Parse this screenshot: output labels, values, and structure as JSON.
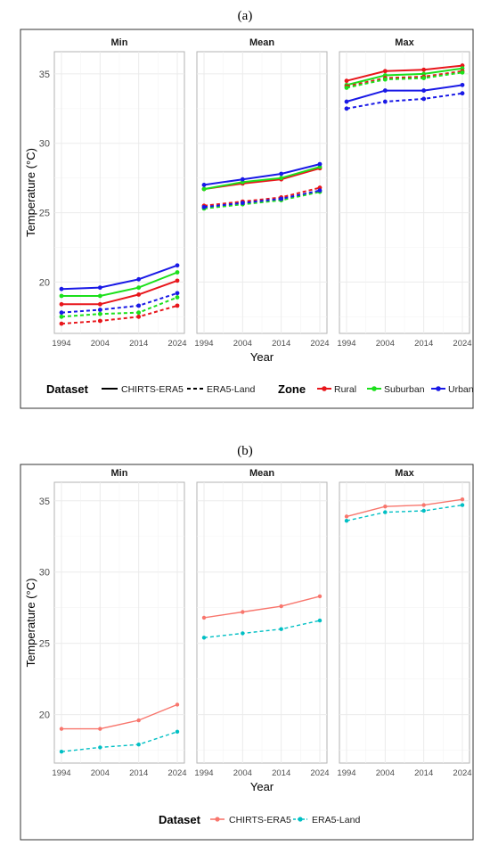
{
  "figure": {
    "panel_a_label": "(a)",
    "panel_b_label": "(b)"
  },
  "chart_data": [
    {
      "type": "line",
      "panel": "(a)",
      "facets": [
        "Min",
        "Mean",
        "Max"
      ],
      "x": [
        1994,
        2004,
        2014,
        2024
      ],
      "xlabel": "Year",
      "ylabel": "Temperature (°C)",
      "yticks": [
        20,
        25,
        30,
        35
      ],
      "ylim": [
        16.3,
        36.6
      ],
      "grid": true,
      "legend": {
        "position": "bottom",
        "dataset_title": "Dataset",
        "dataset_items": [
          "CHIRTS-ERA5",
          "ERA5-Land"
        ],
        "zone_title": "Zone",
        "zone_items": [
          "Rural",
          "Suburban",
          "Urban"
        ]
      },
      "colors": {
        "Rural": "#e8161b",
        "Suburban": "#1be01b",
        "Urban": "#1919e6"
      },
      "series": [
        {
          "zone": "Rural",
          "dataset": "CHIRTS-ERA5",
          "facet": "Min",
          "values": [
            18.4,
            18.4,
            19.1,
            20.1
          ]
        },
        {
          "zone": "Suburban",
          "dataset": "CHIRTS-ERA5",
          "facet": "Min",
          "values": [
            19.0,
            19.0,
            19.6,
            20.7
          ]
        },
        {
          "zone": "Urban",
          "dataset": "CHIRTS-ERA5",
          "facet": "Min",
          "values": [
            19.5,
            19.6,
            20.2,
            21.2
          ]
        },
        {
          "zone": "Rural",
          "dataset": "ERA5-Land",
          "facet": "Min",
          "values": [
            17.0,
            17.2,
            17.5,
            18.3
          ]
        },
        {
          "zone": "Suburban",
          "dataset": "ERA5-Land",
          "facet": "Min",
          "values": [
            17.5,
            17.7,
            17.8,
            18.9
          ]
        },
        {
          "zone": "Urban",
          "dataset": "ERA5-Land",
          "facet": "Min",
          "values": [
            17.8,
            18.0,
            18.3,
            19.2
          ]
        },
        {
          "zone": "Rural",
          "dataset": "CHIRTS-ERA5",
          "facet": "Mean",
          "values": [
            26.7,
            27.1,
            27.4,
            28.2
          ]
        },
        {
          "zone": "Suburban",
          "dataset": "CHIRTS-ERA5",
          "facet": "Mean",
          "values": [
            26.7,
            27.2,
            27.5,
            28.3
          ]
        },
        {
          "zone": "Urban",
          "dataset": "CHIRTS-ERA5",
          "facet": "Mean",
          "values": [
            27.0,
            27.4,
            27.8,
            28.5
          ]
        },
        {
          "zone": "Rural",
          "dataset": "ERA5-Land",
          "facet": "Mean",
          "values": [
            25.5,
            25.8,
            26.1,
            26.8
          ]
        },
        {
          "zone": "Suburban",
          "dataset": "ERA5-Land",
          "facet": "Mean",
          "values": [
            25.3,
            25.6,
            25.9,
            26.5
          ]
        },
        {
          "zone": "Urban",
          "dataset": "ERA5-Land",
          "facet": "Mean",
          "values": [
            25.4,
            25.7,
            26.0,
            26.6
          ]
        },
        {
          "zone": "Rural",
          "dataset": "CHIRTS-ERA5",
          "facet": "Max",
          "values": [
            34.5,
            35.2,
            35.3,
            35.6
          ]
        },
        {
          "zone": "Suburban",
          "dataset": "CHIRTS-ERA5",
          "facet": "Max",
          "values": [
            34.2,
            34.9,
            35.0,
            35.4
          ]
        },
        {
          "zone": "Urban",
          "dataset": "CHIRTS-ERA5",
          "facet": "Max",
          "values": [
            33.0,
            33.8,
            33.8,
            34.2
          ]
        },
        {
          "zone": "Rural",
          "dataset": "ERA5-Land",
          "facet": "Max",
          "values": [
            34.1,
            34.7,
            34.8,
            35.2
          ]
        },
        {
          "zone": "Suburban",
          "dataset": "ERA5-Land",
          "facet": "Max",
          "values": [
            34.0,
            34.6,
            34.7,
            35.1
          ]
        },
        {
          "zone": "Urban",
          "dataset": "ERA5-Land",
          "facet": "Max",
          "values": [
            32.5,
            33.0,
            33.2,
            33.6
          ]
        }
      ]
    },
    {
      "type": "line",
      "panel": "(b)",
      "facets": [
        "Min",
        "Mean",
        "Max"
      ],
      "x": [
        1994,
        2004,
        2014,
        2024
      ],
      "xlabel": "Year",
      "ylabel": "Temperature (°C)",
      "yticks": [
        20,
        25,
        30,
        35
      ],
      "ylim": [
        16.6,
        36.3
      ],
      "grid": true,
      "legend": {
        "position": "bottom",
        "dataset_title": "Dataset",
        "dataset_items": [
          "CHIRTS-ERA5",
          "ERA5-Land"
        ]
      },
      "colors": {
        "CHIRTS-ERA5": "#f8766d",
        "ERA5-Land": "#00bfc4"
      },
      "series": [
        {
          "dataset": "CHIRTS-ERA5",
          "facet": "Min",
          "values": [
            19.0,
            19.0,
            19.6,
            20.7
          ]
        },
        {
          "dataset": "ERA5-Land",
          "facet": "Min",
          "values": [
            17.4,
            17.7,
            17.9,
            18.8
          ]
        },
        {
          "dataset": "CHIRTS-ERA5",
          "facet": "Mean",
          "values": [
            26.8,
            27.2,
            27.6,
            28.3
          ]
        },
        {
          "dataset": "ERA5-Land",
          "facet": "Mean",
          "values": [
            25.4,
            25.7,
            26.0,
            26.6
          ]
        },
        {
          "dataset": "CHIRTS-ERA5",
          "facet": "Max",
          "values": [
            33.9,
            34.6,
            34.7,
            35.1
          ]
        },
        {
          "dataset": "ERA5-Land",
          "facet": "Max",
          "values": [
            33.6,
            34.2,
            34.3,
            34.7
          ]
        }
      ]
    }
  ]
}
